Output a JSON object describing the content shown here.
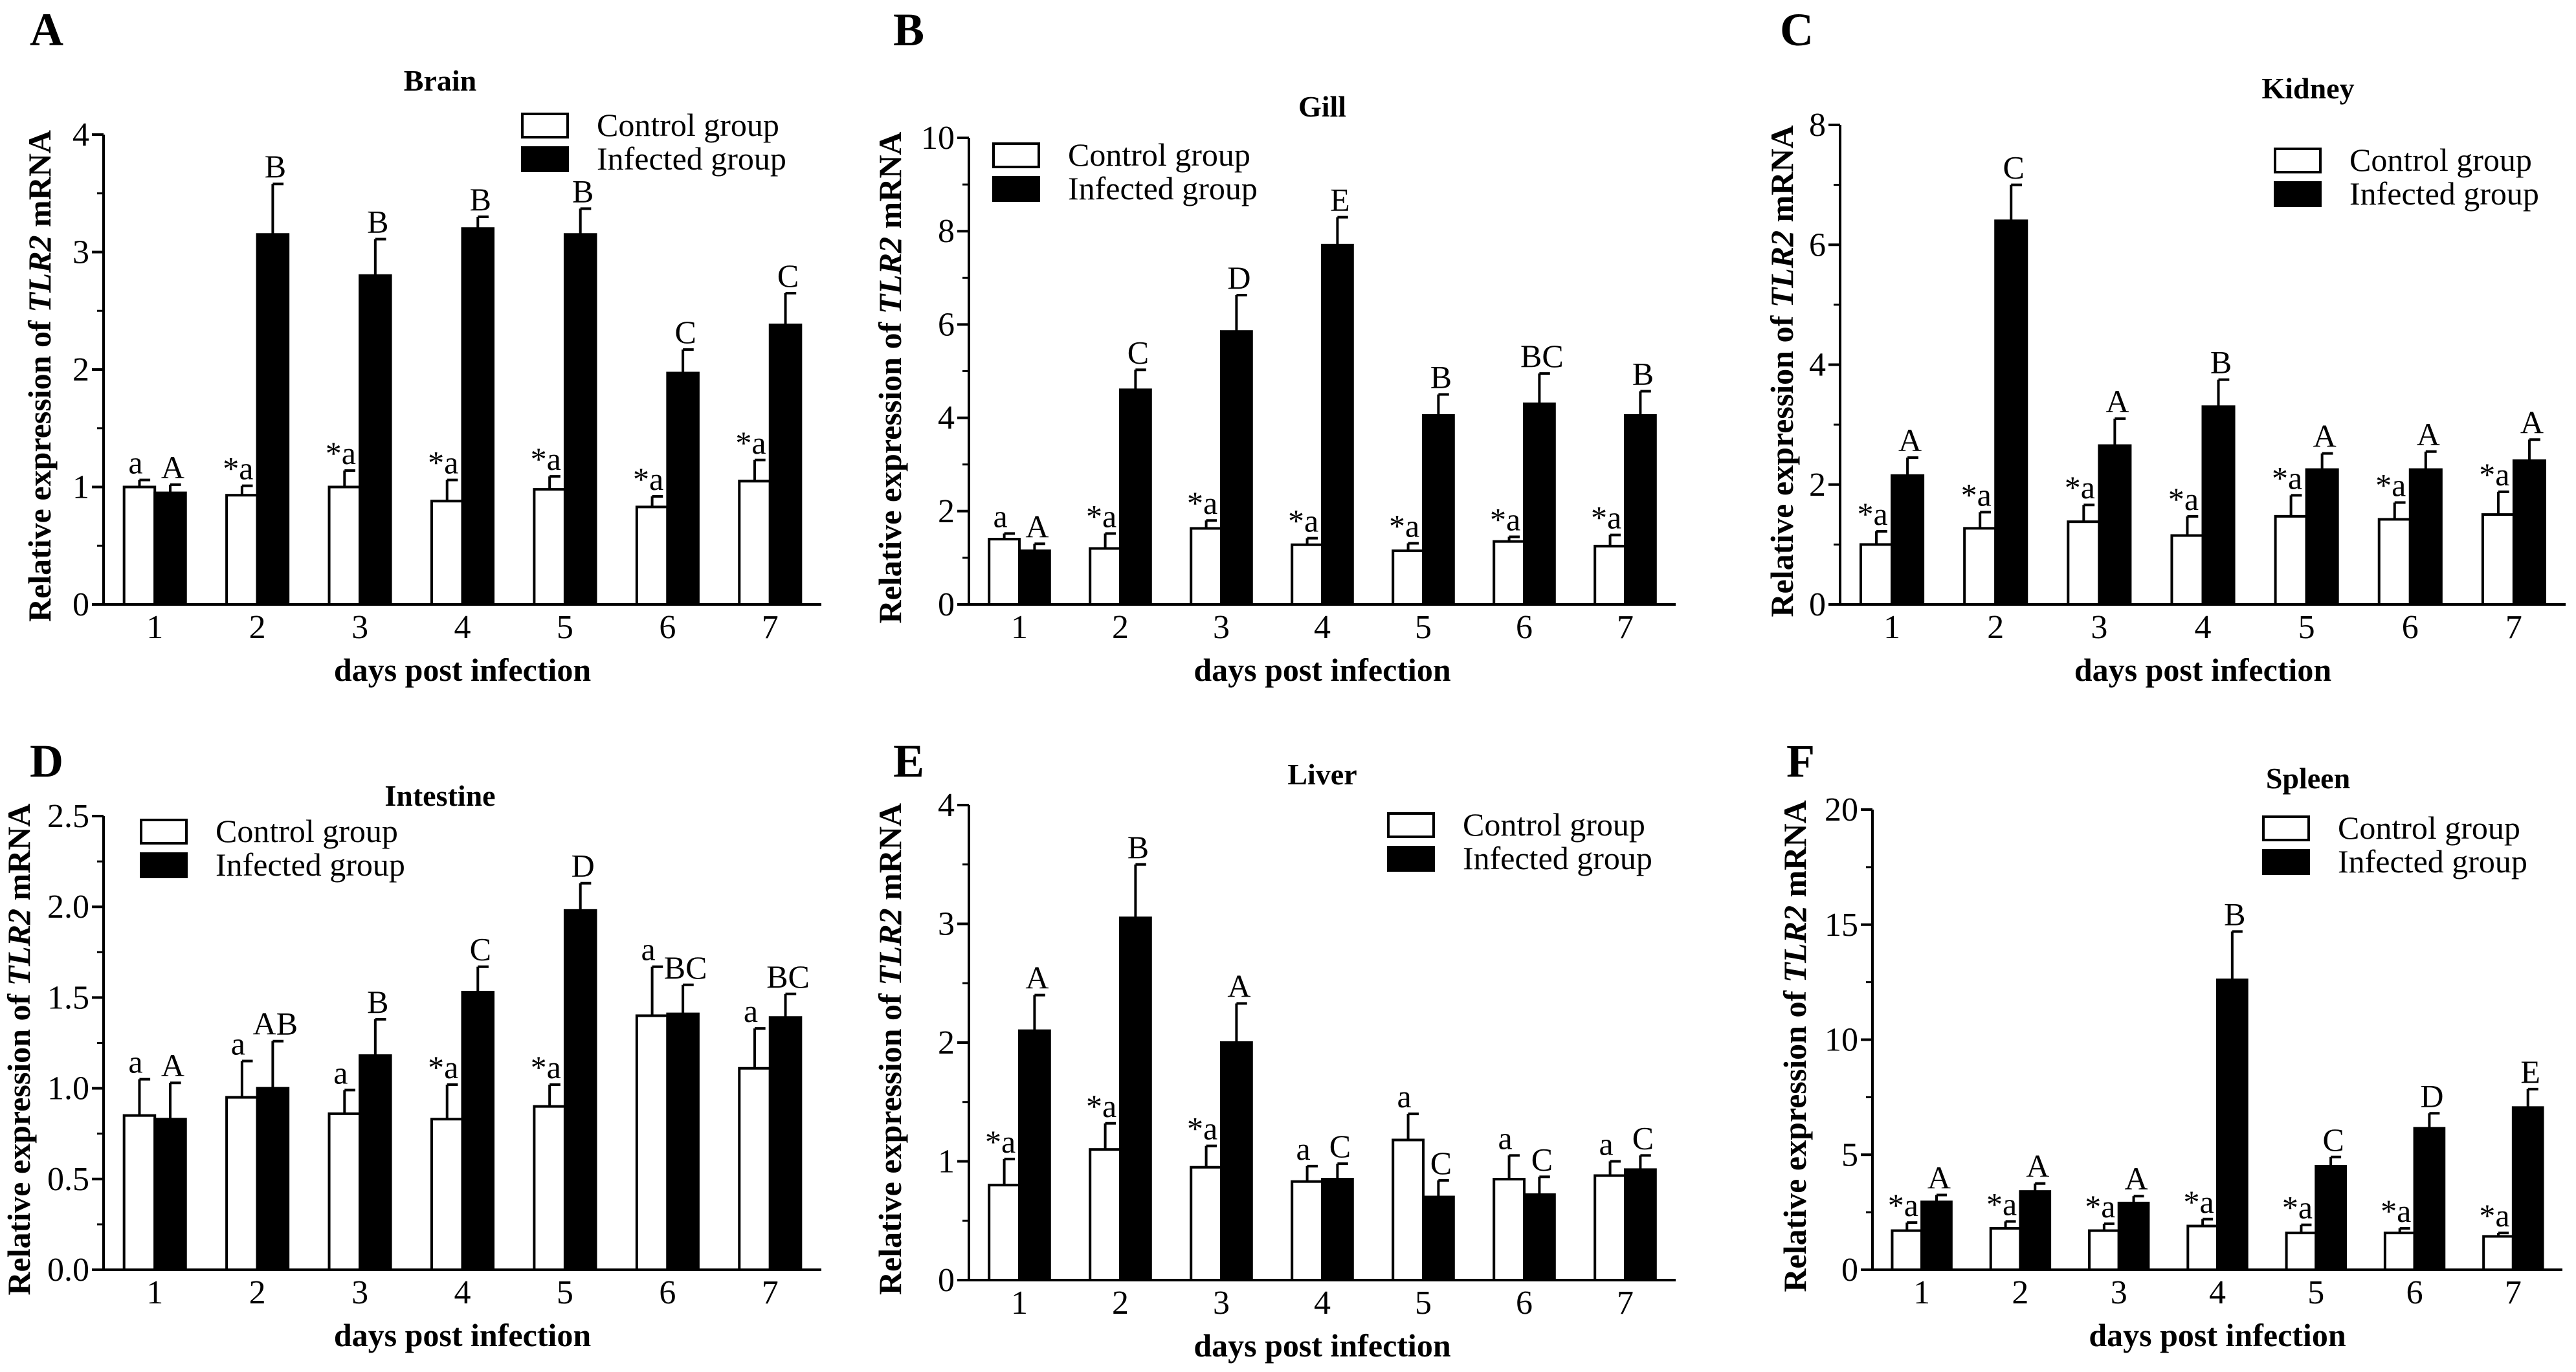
{
  "colors": {
    "control": "#ffffff",
    "infected": "#000000",
    "axis": "#000000"
  },
  "chart_data": [
    {
      "type": "bar",
      "panel": "A",
      "title": "Brain",
      "xlabel": "days post infection",
      "ylabel": {
        "prefix": "Relative expression of ",
        "gene": "TLR2",
        "suffix": " mRNA"
      },
      "categories": [
        "1",
        "2",
        "3",
        "4",
        "5",
        "6",
        "7"
      ],
      "ylim": [
        0,
        4
      ],
      "yticks": [
        0,
        1,
        2,
        3,
        4
      ],
      "ytick_labels": [
        "0",
        "1",
        "2",
        "3",
        "4"
      ],
      "minor_step": 0.5,
      "legend": "top-right",
      "series": [
        {
          "name": "Control group",
          "values": [
            1.0,
            0.93,
            1.0,
            0.88,
            0.98,
            0.83,
            1.05
          ],
          "errors": [
            0.06,
            0.08,
            0.14,
            0.18,
            0.11,
            0.09,
            0.18
          ],
          "labels": [
            "a",
            "*a",
            "*a",
            "*a",
            "*a",
            "*a",
            "*a"
          ]
        },
        {
          "name": "Infected group",
          "values": [
            0.95,
            3.15,
            2.8,
            3.2,
            3.15,
            1.97,
            2.38
          ],
          "errors": [
            0.07,
            0.43,
            0.31,
            0.1,
            0.22,
            0.2,
            0.27
          ],
          "labels": [
            "A",
            "B",
            "B",
            "B",
            "B",
            "C",
            "C"
          ]
        }
      ]
    },
    {
      "type": "bar",
      "panel": "B",
      "title": "Gill",
      "xlabel": "days post infection",
      "ylabel": {
        "prefix": "Relative expression of ",
        "gene": "TLR2",
        "suffix": " mRNA"
      },
      "categories": [
        "1",
        "2",
        "3",
        "4",
        "5",
        "6",
        "7"
      ],
      "ylim": [
        0,
        10
      ],
      "yticks": [
        0,
        2,
        4,
        6,
        8,
        10
      ],
      "ytick_labels": [
        "0",
        "2",
        "4",
        "6",
        "8",
        "10"
      ],
      "minor_step": 1,
      "legend": "top-left",
      "series": [
        {
          "name": "Control group",
          "values": [
            1.4,
            1.2,
            1.63,
            1.28,
            1.15,
            1.35,
            1.25
          ],
          "errors": [
            0.12,
            0.32,
            0.17,
            0.14,
            0.16,
            0.1,
            0.24
          ],
          "labels": [
            "a",
            "*a",
            "*a",
            "*a",
            "*a",
            "*a",
            "*a"
          ]
        },
        {
          "name": "Infected group",
          "values": [
            1.15,
            4.6,
            5.85,
            7.7,
            4.05,
            4.3,
            4.05
          ],
          "errors": [
            0.15,
            0.43,
            0.78,
            0.6,
            0.45,
            0.65,
            0.52
          ],
          "labels": [
            "A",
            "C",
            "D",
            "E",
            "B",
            "BC",
            "B"
          ]
        }
      ]
    },
    {
      "type": "bar",
      "panel": "C",
      "title": "Kidney",
      "xlabel": "days post infection",
      "ylabel": {
        "prefix": "Relative expression of ",
        "gene": "TLR2",
        "suffix": " mRNA"
      },
      "categories": [
        "1",
        "2",
        "3",
        "4",
        "5",
        "6",
        "7"
      ],
      "ylim": [
        0,
        8
      ],
      "yticks": [
        0,
        2,
        4,
        6,
        8
      ],
      "ytick_labels": [
        "0",
        "2",
        "4",
        "6",
        "8"
      ],
      "minor_step": 1,
      "legend": "top-right",
      "series": [
        {
          "name": "Control group",
          "values": [
            1.0,
            1.27,
            1.38,
            1.15,
            1.47,
            1.42,
            1.5
          ],
          "errors": [
            0.22,
            0.27,
            0.28,
            0.32,
            0.35,
            0.28,
            0.38
          ],
          "labels": [
            "*a",
            "*a",
            "*a",
            "*a",
            "*a",
            "*a",
            "*a"
          ]
        },
        {
          "name": "Infected group",
          "values": [
            2.15,
            6.4,
            2.65,
            3.3,
            2.25,
            2.25,
            2.4
          ],
          "errors": [
            0.3,
            0.6,
            0.45,
            0.45,
            0.27,
            0.3,
            0.35
          ],
          "labels": [
            "A",
            "C",
            "A",
            "B",
            "A",
            "A",
            "A"
          ]
        }
      ]
    },
    {
      "type": "bar",
      "panel": "D",
      "title": "Intestine",
      "xlabel": "days post infection",
      "ylabel": {
        "prefix": "Relative expression of ",
        "gene": "TLR2",
        "suffix": " mRNA"
      },
      "categories": [
        "1",
        "2",
        "3",
        "4",
        "5",
        "6",
        "7"
      ],
      "ylim": [
        0,
        2.5
      ],
      "yticks": [
        0,
        0.5,
        1,
        1.5,
        2,
        2.5
      ],
      "ytick_labels": [
        "0.0",
        "0.5",
        "1.0",
        "1.5",
        "2.0",
        "2.5"
      ],
      "minor_step": 0.25,
      "legend": "top-left",
      "series": [
        {
          "name": "Control group",
          "values": [
            0.85,
            0.95,
            0.86,
            0.83,
            0.9,
            1.4,
            1.11
          ],
          "errors": [
            0.2,
            0.2,
            0.13,
            0.19,
            0.12,
            0.27,
            0.22
          ],
          "labels": [
            "a",
            "a",
            "a",
            "*a",
            "*a",
            "a",
            "a"
          ]
        },
        {
          "name": "Infected group",
          "values": [
            0.83,
            1.0,
            1.18,
            1.53,
            1.98,
            1.41,
            1.39
          ],
          "errors": [
            0.2,
            0.26,
            0.2,
            0.14,
            0.15,
            0.16,
            0.13
          ],
          "labels": [
            "A",
            "AB",
            "B",
            "C",
            "D",
            "BC",
            "BC"
          ]
        }
      ]
    },
    {
      "type": "bar",
      "panel": "E",
      "title": "Liver",
      "xlabel": "days post infection",
      "ylabel": {
        "prefix": "Relative expression of ",
        "gene": "TLR2",
        "suffix": " mRNA"
      },
      "categories": [
        "1",
        "2",
        "3",
        "4",
        "5",
        "6",
        "7"
      ],
      "ylim": [
        0,
        4
      ],
      "yticks": [
        0,
        1,
        2,
        3,
        4
      ],
      "ytick_labels": [
        "0",
        "1",
        "2",
        "3",
        "4"
      ],
      "minor_step": 0.5,
      "legend": "top-right",
      "series": [
        {
          "name": "Control group",
          "values": [
            0.8,
            1.1,
            0.95,
            0.83,
            1.18,
            0.85,
            0.88
          ],
          "errors": [
            0.22,
            0.22,
            0.18,
            0.13,
            0.22,
            0.2,
            0.12
          ],
          "labels": [
            "*a",
            "*a",
            "*a",
            "a",
            "a",
            "a",
            "a"
          ]
        },
        {
          "name": "Infected group",
          "values": [
            2.1,
            3.05,
            2.0,
            0.85,
            0.7,
            0.72,
            0.93
          ],
          "errors": [
            0.3,
            0.45,
            0.33,
            0.13,
            0.14,
            0.15,
            0.12
          ],
          "labels": [
            "A",
            "B",
            "A",
            "C",
            "C",
            "C",
            "C"
          ]
        }
      ]
    },
    {
      "type": "bar",
      "panel": "F",
      "title": "Spleen",
      "xlabel": "days post infection",
      "ylabel": {
        "prefix": "Relative expression of ",
        "gene": "TLR2",
        "suffix": " mRNA"
      },
      "categories": [
        "1",
        "2",
        "3",
        "4",
        "5",
        "6",
        "7"
      ],
      "ylim": [
        0,
        20
      ],
      "yticks": [
        0,
        5,
        10,
        15,
        20
      ],
      "ytick_labels": [
        "0",
        "5",
        "10",
        "15",
        "20"
      ],
      "minor_step": 2.5,
      "legend": "top-right",
      "series": [
        {
          "name": "Control group",
          "values": [
            1.7,
            1.8,
            1.7,
            1.9,
            1.6,
            1.6,
            1.45
          ],
          "errors": [
            0.35,
            0.3,
            0.3,
            0.3,
            0.35,
            0.2,
            0.15
          ],
          "labels": [
            "*a",
            "*a",
            "*a",
            "*a",
            "*a",
            "*a",
            "*a"
          ]
        },
        {
          "name": "Infected group",
          "values": [
            2.95,
            3.4,
            2.9,
            12.6,
            4.5,
            6.15,
            7.05
          ],
          "errors": [
            0.3,
            0.35,
            0.3,
            2.1,
            0.4,
            0.65,
            0.8
          ],
          "labels": [
            "A",
            "A",
            "A",
            "B",
            "C",
            "D",
            "E"
          ]
        }
      ]
    }
  ]
}
